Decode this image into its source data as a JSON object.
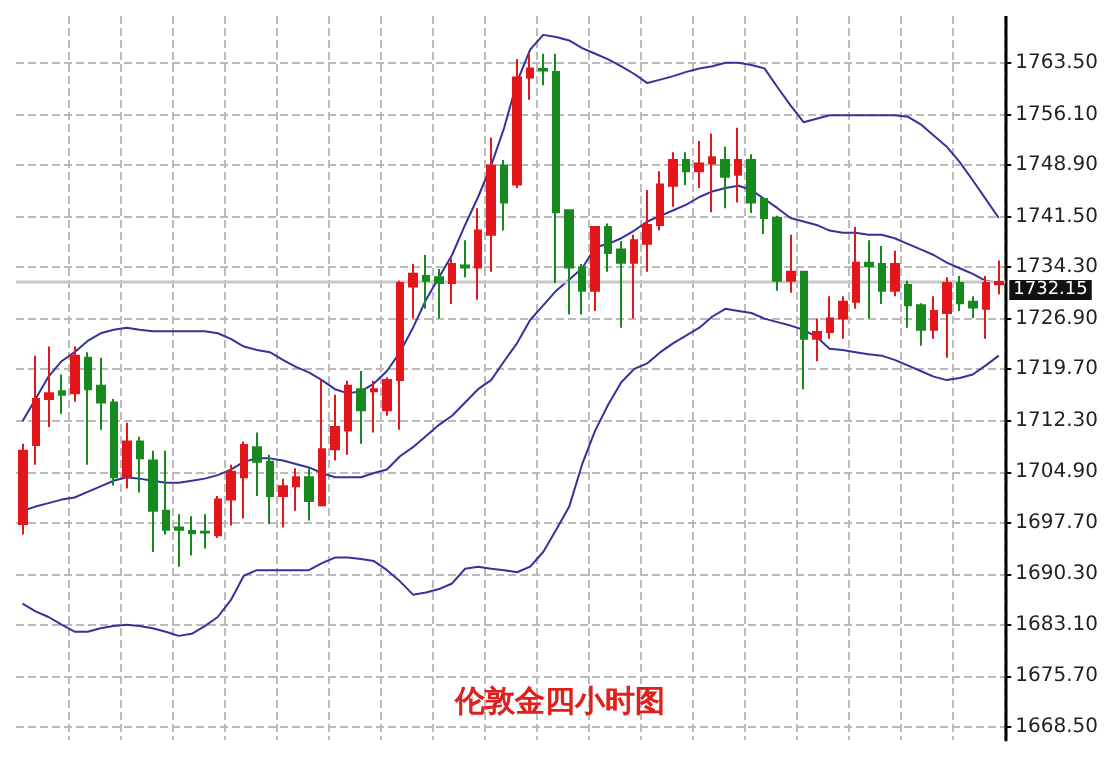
{
  "chart_data": {
    "type": "candlestick",
    "title": "伦敦金四小时图",
    "categories": [
      null,
      null,
      null,
      null,
      null,
      null,
      null,
      null,
      null,
      null,
      null,
      null,
      null,
      null,
      null,
      null,
      null,
      null,
      null,
      null,
      null,
      null,
      null,
      null,
      null,
      null,
      null,
      null,
      null,
      null,
      null,
      null,
      null,
      null,
      null,
      null,
      null,
      null,
      null,
      null,
      null,
      null,
      null,
      null,
      null,
      null,
      null,
      null,
      null,
      null,
      null,
      null,
      null,
      null,
      null,
      null,
      null,
      null,
      null,
      null,
      null,
      null,
      null,
      null,
      null,
      null,
      null,
      null,
      null,
      null,
      null,
      null,
      null,
      null,
      null,
      null
    ],
    "colors": [
      "#e3161c",
      "#e3161c",
      "#e3161c",
      "#168a1e",
      "#e3161c",
      "#168a1e",
      "#168a1e",
      "#168a1e",
      "#e3161c",
      "#168a1e",
      "#168a1e",
      "#168a1e",
      "#168a1e",
      "#168a1e",
      "#168a1e",
      "#e3161c",
      "#e3161c",
      "#e3161c",
      "#168a1e",
      "#168a1e",
      "#e3161c",
      "#e3161c",
      "#168a1e",
      "#e3161c",
      "#e3161c",
      "#e3161c",
      "#168a1e",
      "#e3161c",
      "#e3161c",
      "#e3161c",
      "#e3161c",
      "#168a1e",
      "#168a1e",
      "#e3161c",
      "#168a1e",
      "#e3161c",
      "#e3161c",
      "#168a1e",
      "#e3161c",
      "#e3161c",
      "#168a1e",
      "#168a1e",
      "#168a1e",
      "#168a1e",
      "#e3161c",
      "#168a1e",
      "#168a1e",
      "#e3161c",
      "#e3161c",
      "#e3161c",
      "#e3161c",
      "#168a1e",
      "#e3161c",
      "#e3161c",
      "#168a1e",
      "#e3161c",
      "#168a1e",
      "#168a1e",
      "#168a1e",
      "#e3161c",
      "#168a1e",
      "#e3161c",
      "#e3161c",
      "#e3161c",
      "#e3161c",
      "#168a1e",
      "#168a1e",
      "#e3161c",
      "#168a1e",
      "#168a1e",
      "#e3161c",
      "#e3161c",
      "#168a1e",
      "#168a1e",
      "#e3161c",
      "#e3161c"
    ],
    "ohlc": [
      [
        1697.5,
        1709,
        1696,
        1708
      ],
      [
        1708.8,
        1721.6,
        1706,
        1715.4
      ],
      [
        1715.4,
        1722.9,
        1711.4,
        1716.2
      ],
      [
        1716.5,
        1718.9,
        1713.3,
        1716
      ],
      [
        1716.2,
        1722.9,
        1715,
        1721.6
      ],
      [
        1721.3,
        1722.1,
        1706,
        1716.8
      ],
      [
        1717.3,
        1721.3,
        1711,
        1714.9
      ],
      [
        1714.9,
        1715.4,
        1703,
        1704.2
      ],
      [
        1704.2,
        1712,
        1702.6,
        1709.3
      ],
      [
        1709.3,
        1710,
        1702,
        1706.9
      ],
      [
        1706.6,
        1708,
        1693.5,
        1699.4
      ],
      [
        1699.4,
        1708,
        1696,
        1696.7
      ],
      [
        1697,
        1698.9,
        1691.4,
        1696.7
      ],
      [
        1696.5,
        1698.6,
        1693,
        1696.2
      ],
      [
        1696.4,
        1698.9,
        1694,
        1696.3
      ],
      [
        1695.9,
        1701.5,
        1695.5,
        1701
      ],
      [
        1701,
        1706,
        1697.3,
        1705
      ],
      [
        1704.2,
        1709.3,
        1698.3,
        1708.8
      ],
      [
        1708.5,
        1710.6,
        1701.5,
        1706.4
      ],
      [
        1706.4,
        1707.4,
        1697.5,
        1701.5
      ],
      [
        1701.5,
        1704,
        1697,
        1702.9
      ],
      [
        1702.9,
        1705.5,
        1699.4,
        1704.2
      ],
      [
        1704.2,
        1705.5,
        1698,
        1700.8
      ],
      [
        1700.2,
        1718.1,
        1700,
        1708.2
      ],
      [
        1708.2,
        1716,
        1706.6,
        1711.4
      ],
      [
        1710.9,
        1718,
        1707.4,
        1717.3
      ],
      [
        1716.8,
        1719.4,
        1709,
        1713.8
      ],
      [
        1716.5,
        1718,
        1710.6,
        1716.8
      ],
      [
        1713.8,
        1718.5,
        1713,
        1718.1
      ],
      [
        1718.1,
        1732.3,
        1711,
        1732
      ],
      [
        1731.5,
        1734.7,
        1726.9,
        1733.3
      ],
      [
        1733,
        1736,
        1728.3,
        1732.3
      ],
      [
        1732.8,
        1734,
        1726.9,
        1732
      ],
      [
        1732,
        1735.5,
        1729,
        1734.7
      ],
      [
        1734.5,
        1738.1,
        1732.8,
        1734.2
      ],
      [
        1734.2,
        1742.7,
        1729.6,
        1739.5
      ],
      [
        1738.9,
        1752.8,
        1733.6,
        1748.8
      ],
      [
        1748.8,
        1749.6,
        1739.5,
        1743.5
      ],
      [
        1746.1,
        1764,
        1745.6,
        1761.4
      ],
      [
        1761.4,
        1764.8,
        1758.2,
        1762.7
      ],
      [
        1762.6,
        1764.8,
        1760.3,
        1762.4
      ],
      [
        1762.2,
        1764.8,
        1732,
        1742.1
      ],
      [
        1742.4,
        1742.4,
        1727.5,
        1734.2
      ],
      [
        1734.2,
        1734.7,
        1727.5,
        1730.9
      ],
      [
        1730.9,
        1740,
        1728,
        1740
      ],
      [
        1740,
        1740.5,
        1733.6,
        1736.3
      ],
      [
        1736.8,
        1738,
        1725.6,
        1734.9
      ],
      [
        1734.9,
        1738.9,
        1726.9,
        1738.1
      ],
      [
        1737.6,
        1745.3,
        1733.6,
        1740.3
      ],
      [
        1740.3,
        1748,
        1739.5,
        1746.1
      ],
      [
        1745.9,
        1750.7,
        1742.9,
        1749.6
      ],
      [
        1749.6,
        1750.7,
        1746,
        1748
      ],
      [
        1748,
        1752.3,
        1745.6,
        1749.1
      ],
      [
        1749.1,
        1753.4,
        1742.1,
        1750
      ],
      [
        1749.6,
        1751.5,
        1742.7,
        1747.2
      ],
      [
        1747.5,
        1754.2,
        1743.5,
        1749.6
      ],
      [
        1749.6,
        1750.4,
        1742,
        1743.5
      ],
      [
        1744,
        1744,
        1739,
        1741.3
      ],
      [
        1741.3,
        1741.6,
        1730.9,
        1732.3
      ],
      [
        1732.3,
        1738.9,
        1730.6,
        1733.6
      ],
      [
        1733.6,
        1733.6,
        1716.8,
        1724
      ],
      [
        1724,
        1726.9,
        1720.8,
        1725
      ],
      [
        1725,
        1730.1,
        1724,
        1726.9
      ],
      [
        1726.9,
        1730.1,
        1724,
        1729.3
      ],
      [
        1729.3,
        1740,
        1728.3,
        1734.9
      ],
      [
        1734.9,
        1738.1,
        1726.9,
        1734.4
      ],
      [
        1734.7,
        1737.3,
        1729,
        1730.9
      ],
      [
        1730.9,
        1736.6,
        1730.1,
        1734.7
      ],
      [
        1731.7,
        1732.3,
        1725.6,
        1728.8
      ],
      [
        1728.8,
        1729.1,
        1723,
        1725.3
      ],
      [
        1725.3,
        1730.1,
        1724,
        1728
      ],
      [
        1727.7,
        1732.8,
        1721.3,
        1732
      ],
      [
        1732,
        1733,
        1728,
        1729.1
      ],
      [
        1729.3,
        1730.1,
        1727,
        1728.5
      ],
      [
        1728.3,
        1733,
        1724,
        1732
      ],
      [
        1731.8,
        1735.2,
        1730.4,
        1732.15
      ]
    ],
    "series": [
      {
        "type": "line",
        "color": "#33339a",
        "values": [
          1712.2,
          1715.4,
          1718.6,
          1720.8,
          1722.1,
          1723.7,
          1724.8,
          1725.3,
          1725.6,
          1725.3,
          1725.1,
          1725.1,
          1725.1,
          1725.1,
          1725.1,
          1724.8,
          1724.0,
          1722.9,
          1722.4,
          1722.1,
          1721.0,
          1720.0,
          1719.2,
          1718.1,
          1716.8,
          1716.2,
          1716.5,
          1717.6,
          1719.4,
          1722.1,
          1725.6,
          1729.6,
          1732.8,
          1736.0,
          1740.3,
          1744.3,
          1748.8,
          1754.2,
          1760.8,
          1765.4,
          1767.5,
          1767.2,
          1766.7,
          1765.6,
          1764.8,
          1764.0,
          1763.0,
          1761.9,
          1760.6,
          1761.1,
          1761.6,
          1762.2,
          1762.7,
          1763.0,
          1763.5,
          1763.5,
          1763.2,
          1762.7,
          1760.0,
          1757.4,
          1755.0,
          1755.5,
          1756.0,
          1756.0,
          1756.0,
          1756.0,
          1756.0,
          1756.0,
          1755.8,
          1754.7,
          1753.1,
          1751.5,
          1749.3,
          1746.7,
          1744.0,
          1741.3
        ]
      },
      {
        "type": "line",
        "color": "#33339a",
        "values": [
          1699.4,
          1700.0,
          1700.5,
          1701.0,
          1701.3,
          1702.1,
          1702.9,
          1703.7,
          1704.2,
          1704.0,
          1703.7,
          1703.4,
          1703.4,
          1703.7,
          1704.0,
          1704.5,
          1705.3,
          1706.4,
          1706.9,
          1706.9,
          1706.6,
          1706.1,
          1705.6,
          1704.8,
          1704.2,
          1704.2,
          1704.2,
          1704.8,
          1705.3,
          1707.2,
          1708.5,
          1710.1,
          1711.7,
          1713.0,
          1714.9,
          1716.8,
          1718.1,
          1720.8,
          1723.4,
          1726.7,
          1728.8,
          1730.9,
          1732.5,
          1734.1,
          1737.1,
          1737.6,
          1738.4,
          1739.5,
          1740.8,
          1741.6,
          1742.4,
          1743.2,
          1744.3,
          1745.1,
          1745.6,
          1745.9,
          1745.3,
          1744.0,
          1742.7,
          1741.3,
          1740.8,
          1740.3,
          1739.5,
          1739.2,
          1739.2,
          1738.9,
          1738.9,
          1738.4,
          1737.6,
          1736.8,
          1736.0,
          1734.9,
          1734.1,
          1733.3,
          1732.3,
          1732.0
        ]
      },
      {
        "type": "line",
        "color": "#33339a",
        "values": [
          1686.1,
          1685.0,
          1684.2,
          1683.1,
          1682.1,
          1682.1,
          1682.6,
          1682.9,
          1683.1,
          1682.9,
          1682.6,
          1682.1,
          1681.5,
          1681.8,
          1682.9,
          1684.2,
          1686.6,
          1690.1,
          1690.9,
          1690.9,
          1690.9,
          1690.9,
          1690.9,
          1691.9,
          1692.7,
          1692.7,
          1692.5,
          1692.2,
          1690.9,
          1689.3,
          1687.4,
          1687.7,
          1688.2,
          1689.0,
          1691.1,
          1691.4,
          1691.1,
          1690.9,
          1690.6,
          1691.4,
          1693.5,
          1696.7,
          1700.0,
          1706.1,
          1710.9,
          1714.6,
          1717.8,
          1719.7,
          1720.5,
          1722.1,
          1723.4,
          1724.5,
          1725.6,
          1727.2,
          1728.3,
          1728.0,
          1727.7,
          1726.9,
          1726.4,
          1725.9,
          1725.3,
          1724.3,
          1722.6,
          1722.4,
          1722.1,
          1721.8,
          1721.6,
          1721.0,
          1720.2,
          1719.4,
          1718.6,
          1718.1,
          1718.4,
          1718.9,
          1720.2,
          1721.6
        ]
      }
    ],
    "ylim": [
      1666.6,
      1770.2
    ],
    "yticks": [
      {
        "value": 1763.5,
        "label": "1763.50"
      },
      {
        "value": 1756.1,
        "label": "1756.10"
      },
      {
        "value": 1748.9,
        "label": "1748.90"
      },
      {
        "value": 1741.5,
        "label": "1741.50"
      },
      {
        "value": 1734.3,
        "label": "1734.30"
      },
      {
        "value": 1726.9,
        "label": "1726.90"
      },
      {
        "value": 1719.7,
        "label": "1719.70"
      },
      {
        "value": 1712.3,
        "label": "1712.30"
      },
      {
        "value": 1704.9,
        "label": "1704.90"
      },
      {
        "value": 1697.7,
        "label": "1697.70"
      },
      {
        "value": 1690.3,
        "label": "1690.30"
      },
      {
        "value": 1683.1,
        "label": "1683.10"
      },
      {
        "value": 1675.7,
        "label": "1675.70"
      },
      {
        "value": 1668.5,
        "label": "1668.50"
      }
    ],
    "ref_lines": [
      {
        "axis": "y",
        "value": 1732.15,
        "label": "1732.15",
        "color": "#c8c8c8"
      }
    ],
    "grid": true,
    "tick_labels": "y",
    "line_style": "solid"
  }
}
